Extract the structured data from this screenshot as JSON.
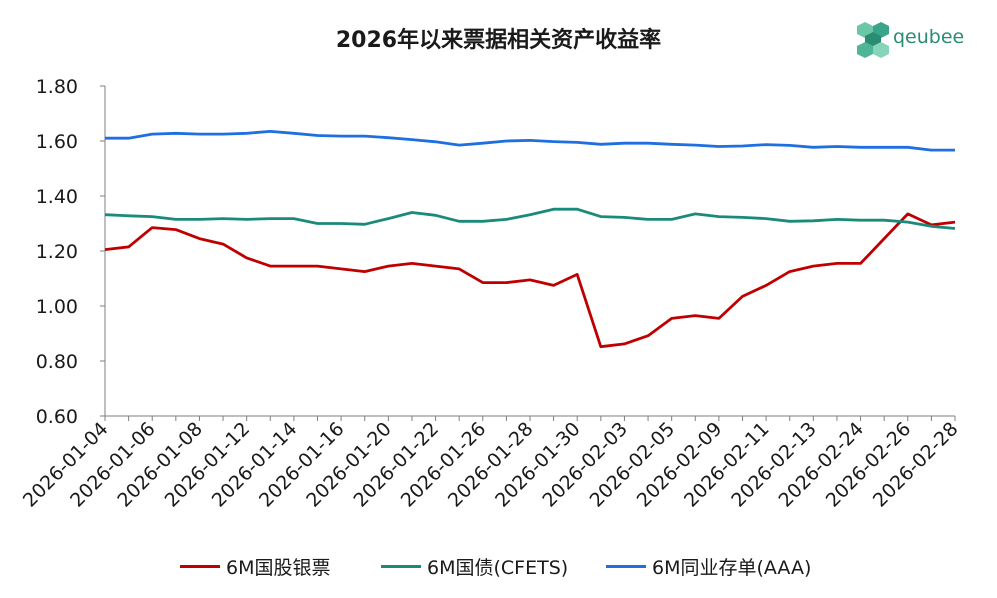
{
  "title": "2026年以来票据相关资产收益率",
  "logo": {
    "text": "qeubee",
    "icon": "hex-cube-icon",
    "color": "#2b8c74"
  },
  "chart_data": {
    "type": "line",
    "title": "2026年以来票据相关资产收益率",
    "ylim": [
      0.6,
      1.8
    ],
    "y_ticks": [
      "0.60",
      "0.80",
      "1.00",
      "1.20",
      "1.40",
      "1.60",
      "1.80"
    ],
    "y_tick_values": [
      0.6,
      0.8,
      1.0,
      1.2,
      1.4,
      1.6,
      1.8
    ],
    "x_tick_labels": [
      "2026-01-04",
      "2026-01-06",
      "2026-01-08",
      "2026-01-12",
      "2026-01-14",
      "2026-01-16",
      "2026-01-20",
      "2026-01-22",
      "2026-01-26",
      "2026-01-28",
      "2026-01-30",
      "2026-02-03",
      "2026-02-05",
      "2026-02-09",
      "2026-02-11",
      "2026-02-13",
      "2026-02-24",
      "2026-02-26",
      "2026-02-28"
    ],
    "num_points": 37,
    "grid": false,
    "legend_position": "bottom",
    "series": [
      {
        "name": "6M国股银票",
        "color": "#c00000",
        "values": [
          1.205,
          1.215,
          1.285,
          1.278,
          1.245,
          1.225,
          1.175,
          1.145,
          1.145,
          1.145,
          1.135,
          1.125,
          1.145,
          1.155,
          1.145,
          1.135,
          1.085,
          1.085,
          1.095,
          1.075,
          1.115,
          0.852,
          0.862,
          0.892,
          0.955,
          0.965,
          0.955,
          1.035,
          1.075,
          1.125,
          1.145,
          1.155,
          1.155,
          1.245,
          1.335,
          1.295,
          1.305
        ]
      },
      {
        "name": "6M国债(CFETS)",
        "color": "#1a8a7a",
        "values": [
          1.332,
          1.328,
          1.325,
          1.315,
          1.315,
          1.318,
          1.315,
          1.318,
          1.318,
          1.3,
          1.3,
          1.297,
          1.318,
          1.34,
          1.33,
          1.308,
          1.308,
          1.315,
          1.332,
          1.352,
          1.352,
          1.325,
          1.322,
          1.315,
          1.315,
          1.335,
          1.325,
          1.322,
          1.318,
          1.308,
          1.31,
          1.315,
          1.312,
          1.312,
          1.305,
          1.29,
          1.282
        ]
      },
      {
        "name": "6M同业存单(AAA)",
        "color": "#1f6fe0",
        "values": [
          1.61,
          1.61,
          1.625,
          1.628,
          1.625,
          1.625,
          1.628,
          1.635,
          1.628,
          1.62,
          1.618,
          1.618,
          1.612,
          1.605,
          1.597,
          1.585,
          1.592,
          1.6,
          1.602,
          1.598,
          1.595,
          1.588,
          1.592,
          1.592,
          1.588,
          1.585,
          1.58,
          1.582,
          1.587,
          1.584,
          1.577,
          1.58,
          1.577,
          1.577,
          1.577,
          1.567,
          1.567
        ]
      }
    ]
  }
}
